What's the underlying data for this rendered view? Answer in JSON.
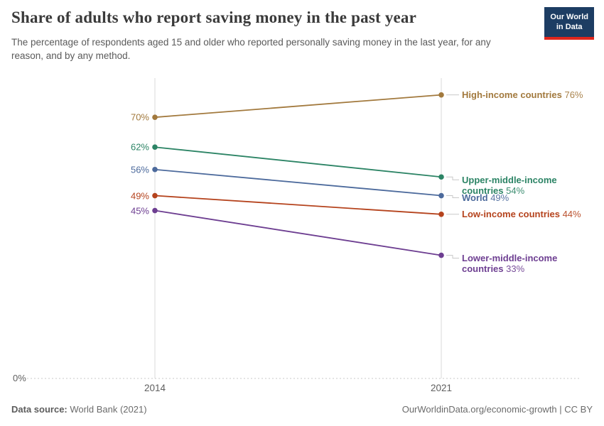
{
  "header": {
    "title": "Share of adults who report saving money in the past year",
    "subtitle": "The percentage of respondents aged 15 and older who reported personally saving money in the last year, for any reason, and by any method.",
    "logo": {
      "line1": "Our World",
      "line2": "in Data",
      "bg_color": "#1D3D63",
      "accent_color": "#E0261C"
    }
  },
  "chart_data": {
    "type": "line",
    "variant": "slope",
    "title": "Share of adults who report saving money in the past year",
    "x": [
      2014,
      2021
    ],
    "x_labels": [
      "2014",
      "2021"
    ],
    "y_baseline_label": "0%",
    "ylim": [
      0,
      80.5
    ],
    "grid": "baseline-dotted-only",
    "legend_position": "right-inline",
    "series": [
      {
        "name": "High-income countries",
        "values": [
          70,
          76
        ],
        "start_value_label": "70%",
        "end_value_label": "76%",
        "color": "#A2793D"
      },
      {
        "name": "Upper-middle-income countries",
        "values": [
          62,
          54
        ],
        "start_value_label": "62%",
        "end_value_label": "54%",
        "color": "#2C8465"
      },
      {
        "name": "World",
        "values": [
          56,
          49
        ],
        "start_value_label": "56%",
        "end_value_label": "49%",
        "color": "#4C6A9C"
      },
      {
        "name": "Low-income countries",
        "values": [
          49,
          44
        ],
        "start_value_label": "49%",
        "end_value_label": "44%",
        "color": "#B5431D"
      },
      {
        "name": "Lower-middle-income countries",
        "values": [
          45,
          33
        ],
        "start_value_label": "45%",
        "end_value_label": "33%",
        "color": "#6D3E91"
      }
    ],
    "axis_color": "#D9D9D9",
    "baseline_color": "#C9C9C9",
    "connector_color": "#C8C8C8"
  },
  "footer": {
    "source_label": "Data source:",
    "source_value": "World Bank (2021)",
    "credit": "OurWorldinData.org/economic-growth | CC BY"
  }
}
